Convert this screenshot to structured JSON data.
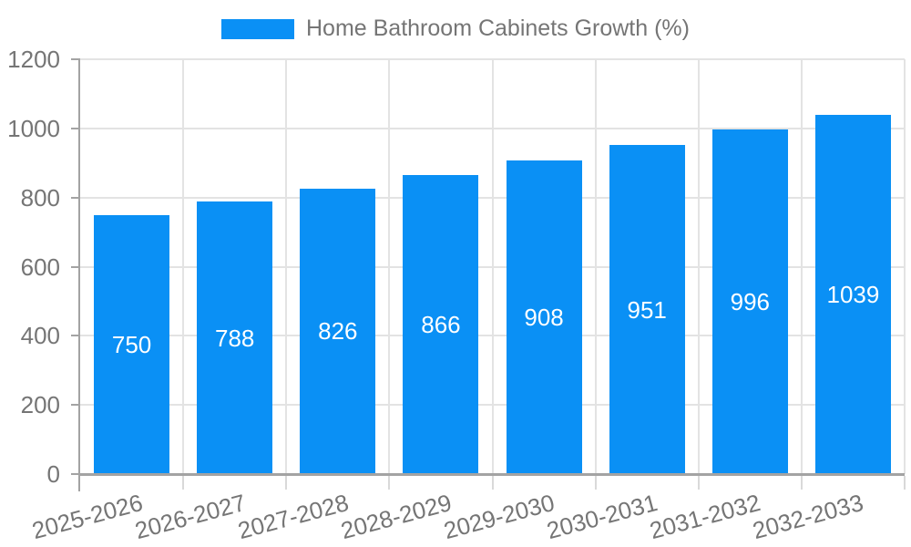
{
  "legend": {
    "label": "Home Bathroom Cabinets Growth (%)",
    "swatch_color": "#0a90f5"
  },
  "chart_data": {
    "type": "bar",
    "title": "Home Bathroom Cabinets Growth (%)",
    "categories": [
      "2025-2026",
      "2026-2027",
      "2027-2028",
      "2028-2029",
      "2029-2030",
      "2030-2031",
      "2031-2032",
      "2032-2033"
    ],
    "values": [
      750,
      788,
      826,
      866,
      908,
      951,
      996,
      1039
    ],
    "xlabel": "",
    "ylabel": "",
    "ylim": [
      0,
      1200
    ],
    "yticks": [
      0,
      200,
      400,
      600,
      800,
      1000,
      1200
    ],
    "grid": true,
    "legend_position": "top",
    "bar_color": "#0a90f5",
    "bar_label_color": "#ffffff",
    "axis_text_color": "#757575",
    "grid_color": "#e3e3e3",
    "axis_line_color": "#a3a3a3",
    "background_color": "#ffffff"
  }
}
